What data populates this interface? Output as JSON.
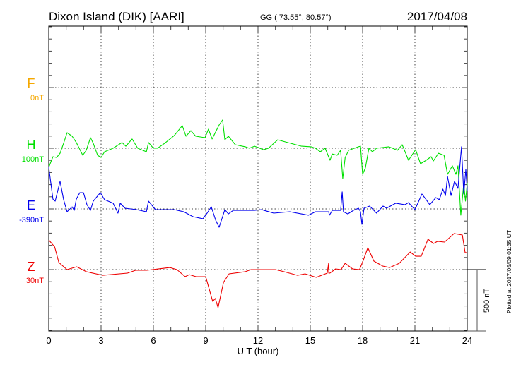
{
  "chart_data": {
    "type": "line",
    "title": "Dixon Island (DIK)  [AARI]",
    "coords": "GG ( 73.55°,  80.57°)",
    "date": "2017/04/08",
    "xlabel": "U T (hour)",
    "xlim": [
      0,
      24
    ],
    "x_ticks": [
      "0",
      "3",
      "6",
      "9",
      "12",
      "15",
      "18",
      "21",
      "24"
    ],
    "grid": true,
    "scale_bar_label": "500 nT",
    "plotted_note": "Plotted at 2017/05/09 01:35 UT",
    "series": [
      {
        "name": "F",
        "baseline_label": "0nT",
        "color": "#f5a800",
        "points": []
      },
      {
        "name": "H",
        "baseline_label": "100nT",
        "color": "#00e000",
        "points": [
          [
            0,
            -157
          ],
          [
            0.24,
            -70
          ],
          [
            0.45,
            -76
          ],
          [
            0.65,
            -41
          ],
          [
            0.85,
            41
          ],
          [
            1.05,
            128
          ],
          [
            1.34,
            99
          ],
          [
            1.58,
            47
          ],
          [
            1.95,
            -58
          ],
          [
            2.15,
            -17
          ],
          [
            2.39,
            87
          ],
          [
            2.55,
            41
          ],
          [
            2.8,
            -58
          ],
          [
            3.0,
            -76
          ],
          [
            3.2,
            -29
          ],
          [
            3.69,
            0
          ],
          [
            4.2,
            47
          ],
          [
            4.42,
            17
          ],
          [
            4.78,
            76
          ],
          [
            5.1,
            0
          ],
          [
            5.6,
            -29
          ],
          [
            5.72,
            47
          ],
          [
            6.0,
            0
          ],
          [
            6.24,
            0
          ],
          [
            6.65,
            41
          ],
          [
            7.2,
            105
          ],
          [
            7.66,
            186
          ],
          [
            7.87,
            99
          ],
          [
            8.15,
            145
          ],
          [
            8.43,
            99
          ],
          [
            8.96,
            87
          ],
          [
            9.16,
            157
          ],
          [
            9.37,
            76
          ],
          [
            9.77,
            192
          ],
          [
            9.97,
            233
          ],
          [
            10.1,
            70
          ],
          [
            10.3,
            99
          ],
          [
            10.7,
            29
          ],
          [
            11.27,
            12
          ],
          [
            11.5,
            0
          ],
          [
            11.8,
            17
          ],
          [
            12.32,
            -12
          ],
          [
            12.6,
            0
          ],
          [
            13.13,
            70
          ],
          [
            13.7,
            47
          ],
          [
            14.5,
            17
          ],
          [
            15.04,
            12
          ],
          [
            15.3,
            0
          ],
          [
            15.57,
            -29
          ],
          [
            15.85,
            0
          ],
          [
            16.13,
            -99
          ],
          [
            16.26,
            -47
          ],
          [
            16.54,
            -58
          ],
          [
            16.74,
            -17
          ],
          [
            16.86,
            -250
          ],
          [
            17.0,
            -76
          ],
          [
            17.2,
            -17
          ],
          [
            17.76,
            12
          ],
          [
            17.88,
            17
          ],
          [
            18.0,
            -215
          ],
          [
            18.16,
            -163
          ],
          [
            18.36,
            0
          ],
          [
            18.56,
            -29
          ],
          [
            18.8,
            0
          ],
          [
            19.5,
            12
          ],
          [
            20.0,
            -17
          ],
          [
            20.27,
            29
          ],
          [
            20.63,
            -99
          ],
          [
            21.04,
            -12
          ],
          [
            21.32,
            -128
          ],
          [
            21.65,
            -99
          ],
          [
            21.93,
            -70
          ],
          [
            22.06,
            -105
          ],
          [
            22.35,
            -41
          ],
          [
            22.67,
            -58
          ],
          [
            22.87,
            -215
          ],
          [
            23.15,
            -145
          ],
          [
            23.35,
            -215
          ],
          [
            23.47,
            -145
          ],
          [
            23.63,
            -552
          ],
          [
            23.8,
            -290
          ],
          [
            23.9,
            -436
          ],
          [
            24.0,
            -290
          ]
        ]
      },
      {
        "name": "E",
        "baseline_label": "-390nT",
        "color": "#0000ee",
        "points": [
          [
            0,
            343
          ],
          [
            0.24,
            81
          ],
          [
            0.37,
            64
          ],
          [
            0.65,
            227
          ],
          [
            0.85,
            76
          ],
          [
            1.05,
            -23
          ],
          [
            1.34,
            17
          ],
          [
            1.46,
            -12
          ],
          [
            1.58,
            81
          ],
          [
            1.78,
            134
          ],
          [
            1.99,
            134
          ],
          [
            2.19,
            35
          ],
          [
            2.39,
            -12
          ],
          [
            2.55,
            64
          ],
          [
            2.96,
            134
          ],
          [
            3.2,
            76
          ],
          [
            3.69,
            47
          ],
          [
            3.97,
            -35
          ],
          [
            4.1,
            47
          ],
          [
            4.37,
            6
          ],
          [
            5.03,
            -6
          ],
          [
            5.6,
            -23
          ],
          [
            5.72,
            64
          ],
          [
            6.12,
            -6
          ],
          [
            7.2,
            -6
          ],
          [
            7.74,
            -23
          ],
          [
            8.27,
            -64
          ],
          [
            8.84,
            -81
          ],
          [
            9.08,
            -35
          ],
          [
            9.32,
            17
          ],
          [
            9.57,
            -93
          ],
          [
            9.77,
            -151
          ],
          [
            9.97,
            -64
          ],
          [
            10.1,
            -6
          ],
          [
            10.3,
            -41
          ],
          [
            10.58,
            -12
          ],
          [
            11.27,
            -12
          ],
          [
            11.8,
            -12
          ],
          [
            12.2,
            -6
          ],
          [
            12.9,
            -35
          ],
          [
            13.82,
            -23
          ],
          [
            14.9,
            -52
          ],
          [
            15.3,
            -23
          ],
          [
            16.05,
            -23
          ],
          [
            16.1,
            -52
          ],
          [
            16.26,
            -12
          ],
          [
            16.74,
            -12
          ],
          [
            16.83,
            140
          ],
          [
            16.9,
            -23
          ],
          [
            17.15,
            -41
          ],
          [
            17.47,
            -12
          ],
          [
            17.76,
            6
          ],
          [
            17.88,
            -23
          ],
          [
            17.96,
            -128
          ],
          [
            18.08,
            6
          ],
          [
            18.4,
            23
          ],
          [
            18.8,
            -35
          ],
          [
            19.17,
            23
          ],
          [
            19.37,
            6
          ],
          [
            19.9,
            47
          ],
          [
            20.43,
            35
          ],
          [
            20.63,
            52
          ],
          [
            21.0,
            -6
          ],
          [
            21.4,
            122
          ],
          [
            21.65,
            76
          ],
          [
            21.85,
            35
          ],
          [
            22.2,
            93
          ],
          [
            22.4,
            76
          ],
          [
            22.6,
            163
          ],
          [
            22.75,
            110
          ],
          [
            22.87,
            267
          ],
          [
            23.07,
            110
          ],
          [
            23.27,
            227
          ],
          [
            23.47,
            169
          ],
          [
            23.67,
            512
          ],
          [
            23.8,
            122
          ],
          [
            23.92,
            326
          ],
          [
            24.0,
            151
          ]
        ]
      },
      {
        "name": "Z",
        "baseline_label": "30nT",
        "color": "#ee0000",
        "points": [
          [
            0,
            244
          ],
          [
            0.34,
            186
          ],
          [
            0.58,
            58
          ],
          [
            1.05,
            0
          ],
          [
            1.6,
            23
          ],
          [
            2.15,
            -17
          ],
          [
            3.1,
            -47
          ],
          [
            4.51,
            -29
          ],
          [
            4.98,
            -6
          ],
          [
            5.62,
            -6
          ],
          [
            6.95,
            17
          ],
          [
            7.35,
            0
          ],
          [
            7.82,
            -58
          ],
          [
            8.06,
            -41
          ],
          [
            8.45,
            -58
          ],
          [
            9.0,
            -58
          ],
          [
            9.4,
            -262
          ],
          [
            9.55,
            -238
          ],
          [
            9.71,
            -314
          ],
          [
            10.02,
            -105
          ],
          [
            10.34,
            -35
          ],
          [
            11.28,
            -17
          ],
          [
            11.6,
            0
          ],
          [
            13.0,
            0
          ],
          [
            13.48,
            -17
          ],
          [
            14.27,
            -47
          ],
          [
            14.7,
            -35
          ],
          [
            15.34,
            -64
          ],
          [
            15.97,
            -29
          ],
          [
            16.05,
            52
          ],
          [
            16.06,
            -29
          ],
          [
            16.12,
            -29
          ],
          [
            16.45,
            6
          ],
          [
            16.76,
            0
          ],
          [
            17.0,
            52
          ],
          [
            17.42,
            6
          ],
          [
            17.82,
            0
          ],
          [
            18.02,
            70
          ],
          [
            18.3,
            180
          ],
          [
            18.65,
            70
          ],
          [
            19.15,
            29
          ],
          [
            19.55,
            17
          ],
          [
            20.1,
            52
          ],
          [
            20.73,
            145
          ],
          [
            21.04,
            110
          ],
          [
            21.36,
            110
          ],
          [
            21.75,
            250
          ],
          [
            22.07,
            215
          ],
          [
            22.3,
            233
          ],
          [
            22.7,
            227
          ],
          [
            23.25,
            297
          ],
          [
            23.72,
            285
          ],
          [
            23.88,
            140
          ],
          [
            24.0,
            140
          ]
        ]
      }
    ]
  }
}
